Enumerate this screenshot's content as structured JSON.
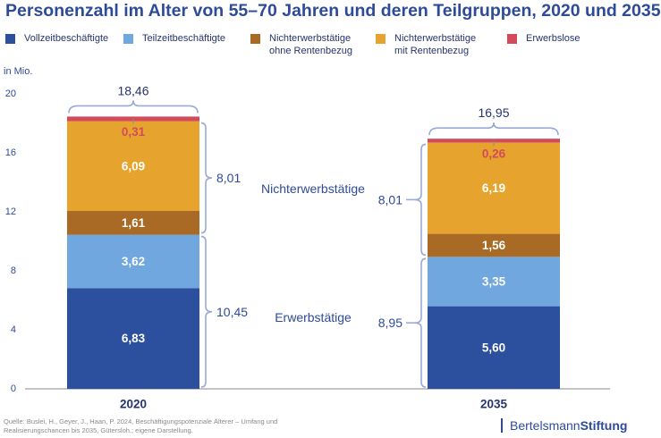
{
  "chart_data": {
    "type": "bar",
    "stacked": true,
    "title": "Personenzahl im Alter von 55–70 Jahren und deren Teilgruppen, 2020 und 2035",
    "ylabel": "in Mio.",
    "ylim": [
      0,
      20
    ],
    "yticks": [
      0,
      4,
      8,
      12,
      16,
      20
    ],
    "grid": false,
    "legend_position": "top",
    "categories": [
      "2020",
      "2035"
    ],
    "series": [
      {
        "name": "Vollzeitbeschäftigte",
        "color": "#2c4f9e",
        "values": [
          6.83,
          5.6
        ],
        "labels": [
          "6,83",
          "5,60"
        ],
        "label_color": "#ffffff"
      },
      {
        "name": "Teilzeitbeschäftigte",
        "color": "#6fa7de",
        "values": [
          3.62,
          3.35
        ],
        "labels": [
          "3,62",
          "3,35"
        ],
        "label_color": "#ffffff"
      },
      {
        "name": "Nichterwerbstätige\nohne Rentenbezug",
        "color": "#a86a25",
        "values": [
          1.61,
          1.56
        ],
        "labels": [
          "1,61",
          "1,56"
        ],
        "label_color": "#ffffff"
      },
      {
        "name": "Nichterwerbstätige\nmit Rentenbezug",
        "color": "#e6a42e",
        "values": [
          6.09,
          6.19
        ],
        "labels": [
          "6,09",
          "6,19"
        ],
        "label_color": "#ffffff"
      },
      {
        "name": "Erwerbslose",
        "color": "#d24a5c",
        "values": [
          0.31,
          0.26
        ],
        "labels": [
          "0,31",
          "0,26"
        ],
        "label_color": "#d24a5c"
      }
    ],
    "totals": {
      "values": [
        18.46,
        16.95
      ],
      "labels": [
        "18,46",
        "16,95"
      ]
    },
    "groups": [
      {
        "name": "Nichterwerbstätige",
        "series_index": [
          2,
          3
        ],
        "labels": [
          "8,01",
          "8,01"
        ]
      },
      {
        "name": "Erwerbstätige",
        "series_index": [
          0,
          1
        ],
        "labels": [
          "10,45",
          "8,95"
        ]
      }
    ]
  },
  "footer": {
    "source": "Quelle: Buslei, H., Geyer, J., Haan, P. 2024, Beschäftigungspotenziale Älterer – Umfang und Realisierungschancen bis 2035, Gütersloh.; eigene Darstellung.",
    "brand_regular": "Bertelsmann",
    "brand_bold": "Stiftung"
  }
}
